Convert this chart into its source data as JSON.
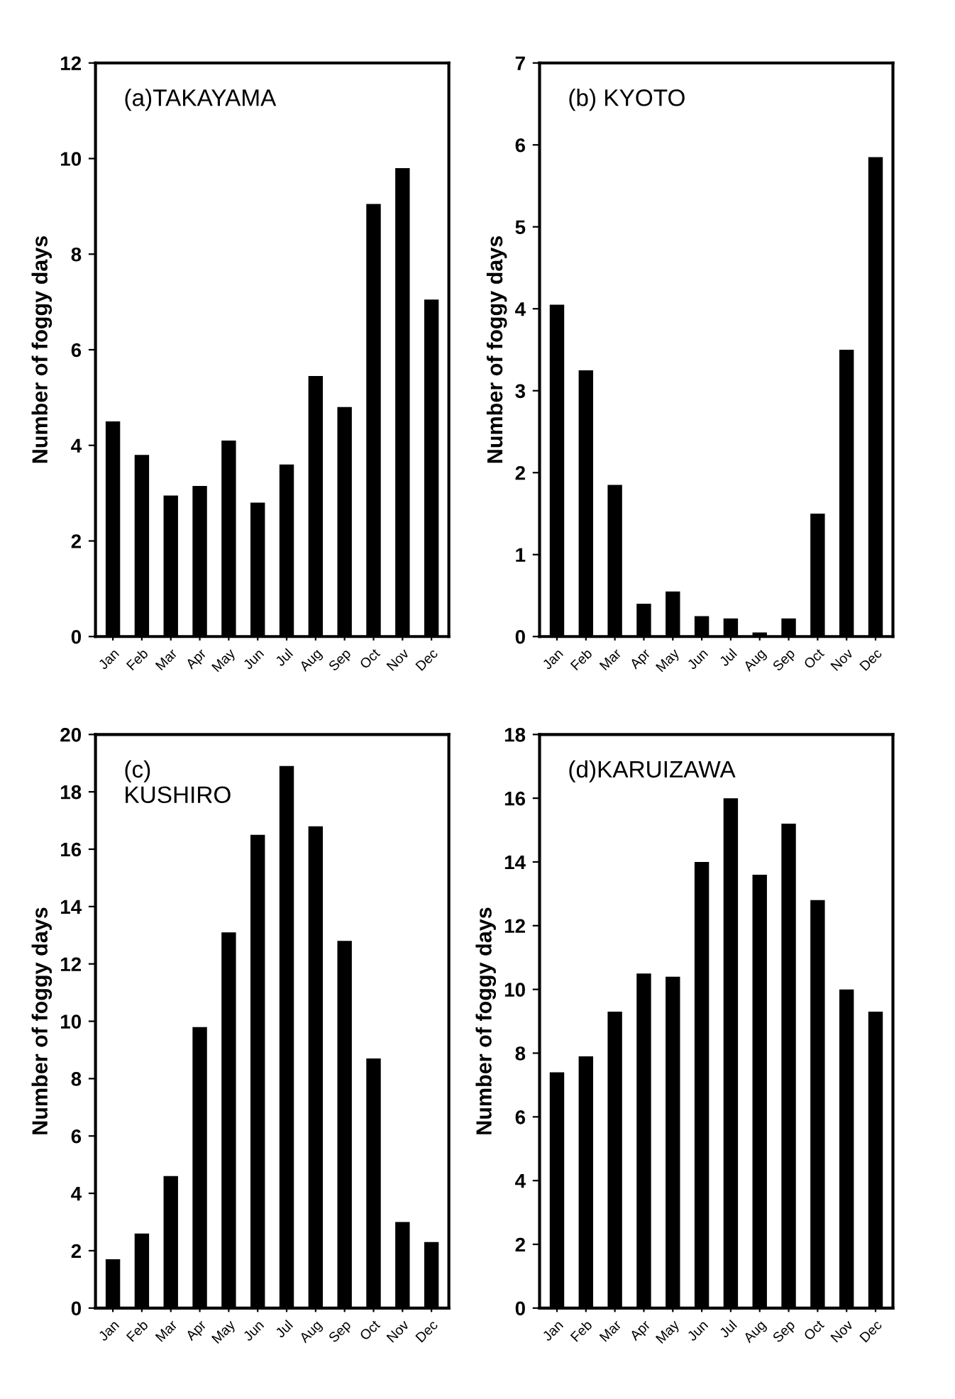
{
  "chart_data": [
    {
      "type": "bar",
      "title": "(a)TAKAYAMA",
      "ylabel": "Number of foggy days",
      "categories": [
        "Jan",
        "Feb",
        "Mar",
        "Apr",
        "May",
        "Jun",
        "Jul",
        "Aug",
        "Sep",
        "Oct",
        "Nov",
        "Dec"
      ],
      "values": [
        4.5,
        3.8,
        2.95,
        3.15,
        4.1,
        2.8,
        3.6,
        5.45,
        4.8,
        9.05,
        9.8,
        7.05
      ],
      "color": "#000000",
      "ylim": [
        0,
        12
      ],
      "yticks": [
        0,
        2,
        4,
        6,
        8,
        10,
        12
      ],
      "grid": false
    },
    {
      "type": "bar",
      "title": "(b) KYOTO",
      "ylabel": "Number of foggy days",
      "categories": [
        "Jan",
        "Feb",
        "Mar",
        "Apr",
        "May",
        "Jun",
        "Jul",
        "Aug",
        "Sep",
        "Oct",
        "Nov",
        "Dec"
      ],
      "values": [
        4.05,
        3.25,
        1.85,
        0.4,
        0.55,
        0.25,
        0.22,
        0.05,
        0.22,
        1.5,
        3.5,
        5.85
      ],
      "color": "#000000",
      "ylim": [
        0,
        7
      ],
      "yticks": [
        0,
        1,
        2,
        3,
        4,
        5,
        6,
        7
      ],
      "grid": false
    },
    {
      "type": "bar",
      "title": "(c)\nKUSHIRO",
      "ylabel": "Number of foggy days",
      "categories": [
        "Jan",
        "Feb",
        "Mar",
        "Apr",
        "May",
        "Jun",
        "Jul",
        "Aug",
        "Sep",
        "Oct",
        "Nov",
        "Dec"
      ],
      "values": [
        1.7,
        2.6,
        4.6,
        9.8,
        13.1,
        16.5,
        18.9,
        16.8,
        12.8,
        8.7,
        3.0,
        2.3
      ],
      "color": "#000000",
      "ylim": [
        0,
        20
      ],
      "yticks": [
        0,
        2,
        4,
        6,
        8,
        10,
        12,
        14,
        16,
        18,
        20
      ],
      "grid": false
    },
    {
      "type": "bar",
      "title": "(d)KARUIZAWA",
      "ylabel": "Number of foggy days",
      "categories": [
        "Jan",
        "Feb",
        "Mar",
        "Apr",
        "May",
        "Jun",
        "Jul",
        "Aug",
        "Sep",
        "Oct",
        "Nov",
        "Dec"
      ],
      "values": [
        7.4,
        7.9,
        9.3,
        10.5,
        10.4,
        14.0,
        16.0,
        13.6,
        15.2,
        12.8,
        10.0,
        9.3
      ],
      "color": "#000000",
      "ylim": [
        0,
        18
      ],
      "yticks": [
        0,
        2,
        4,
        6,
        8,
        10,
        12,
        14,
        16,
        18
      ],
      "grid": false
    }
  ]
}
